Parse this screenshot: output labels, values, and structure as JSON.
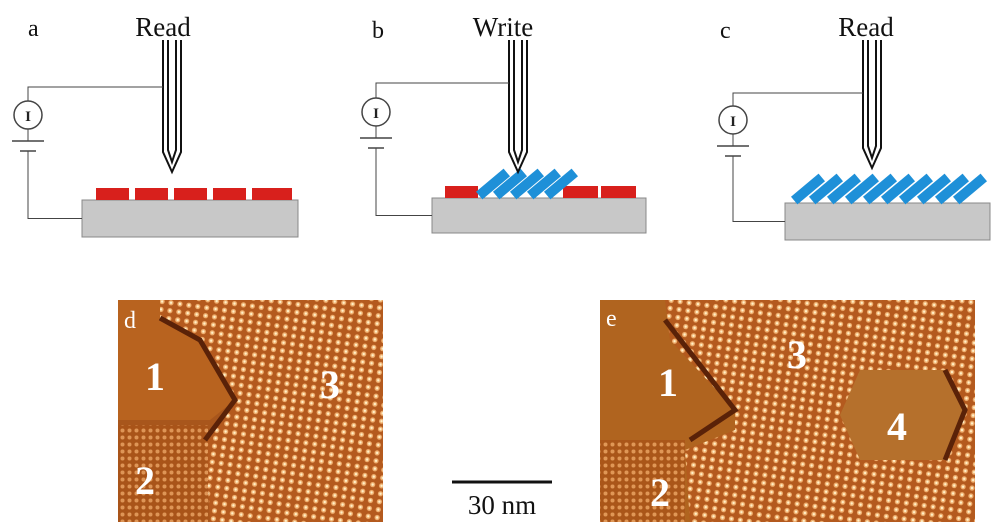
{
  "panels": [
    {
      "label": "a",
      "title": "Read",
      "meter": "I"
    },
    {
      "label": "b",
      "title": "Write",
      "meter": "I"
    },
    {
      "label": "c",
      "title": "Read",
      "meter": "I"
    }
  ],
  "images": [
    {
      "label": "d",
      "regions": [
        "1",
        "3",
        "2"
      ]
    },
    {
      "label": "e",
      "regions": [
        "1",
        "3",
        "4",
        "2"
      ]
    }
  ],
  "scale_bar": "30 nm"
}
